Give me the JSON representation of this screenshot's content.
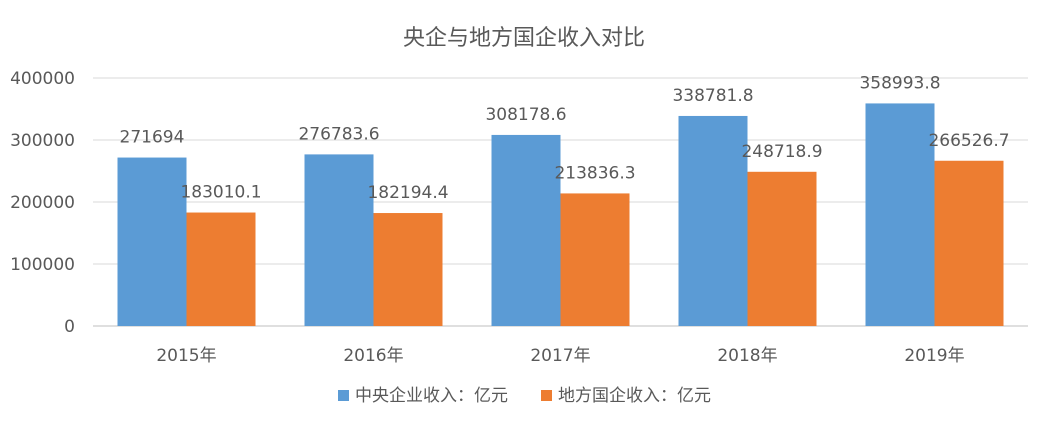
{
  "chart_data": {
    "type": "bar",
    "title": "央企与地方国企收入对比",
    "categories": [
      "2015年",
      "2016年",
      "2017年",
      "2018年",
      "2019年"
    ],
    "series": [
      {
        "name": "中央企业收入：亿元",
        "values": [
          271694,
          276783.6,
          308178.6,
          338781.8,
          358993.8
        ],
        "labels": [
          "271694",
          "276783.6",
          "308178.6",
          "338781.8",
          "358993.8"
        ],
        "color": "#5B9BD5"
      },
      {
        "name": "地方国企收入：亿元",
        "values": [
          183010.1,
          182194.4,
          213836.3,
          248718.9,
          266526.7
        ],
        "labels": [
          "183010.1",
          "182194.4",
          "213836.3",
          "248718.9",
          "266526.7"
        ],
        "color": "#ED7D31"
      }
    ],
    "ylim": [
      0,
      400000
    ],
    "yticks": [
      0,
      100000,
      200000,
      300000,
      400000
    ],
    "ytick_labels": [
      "0",
      "100000",
      "200000",
      "300000",
      "400000"
    ],
    "grid": true,
    "legend_position": "bottom",
    "gridline_color": "#D9D9D9",
    "axis_color": "#BFBFBF",
    "text_color": "#595959"
  }
}
